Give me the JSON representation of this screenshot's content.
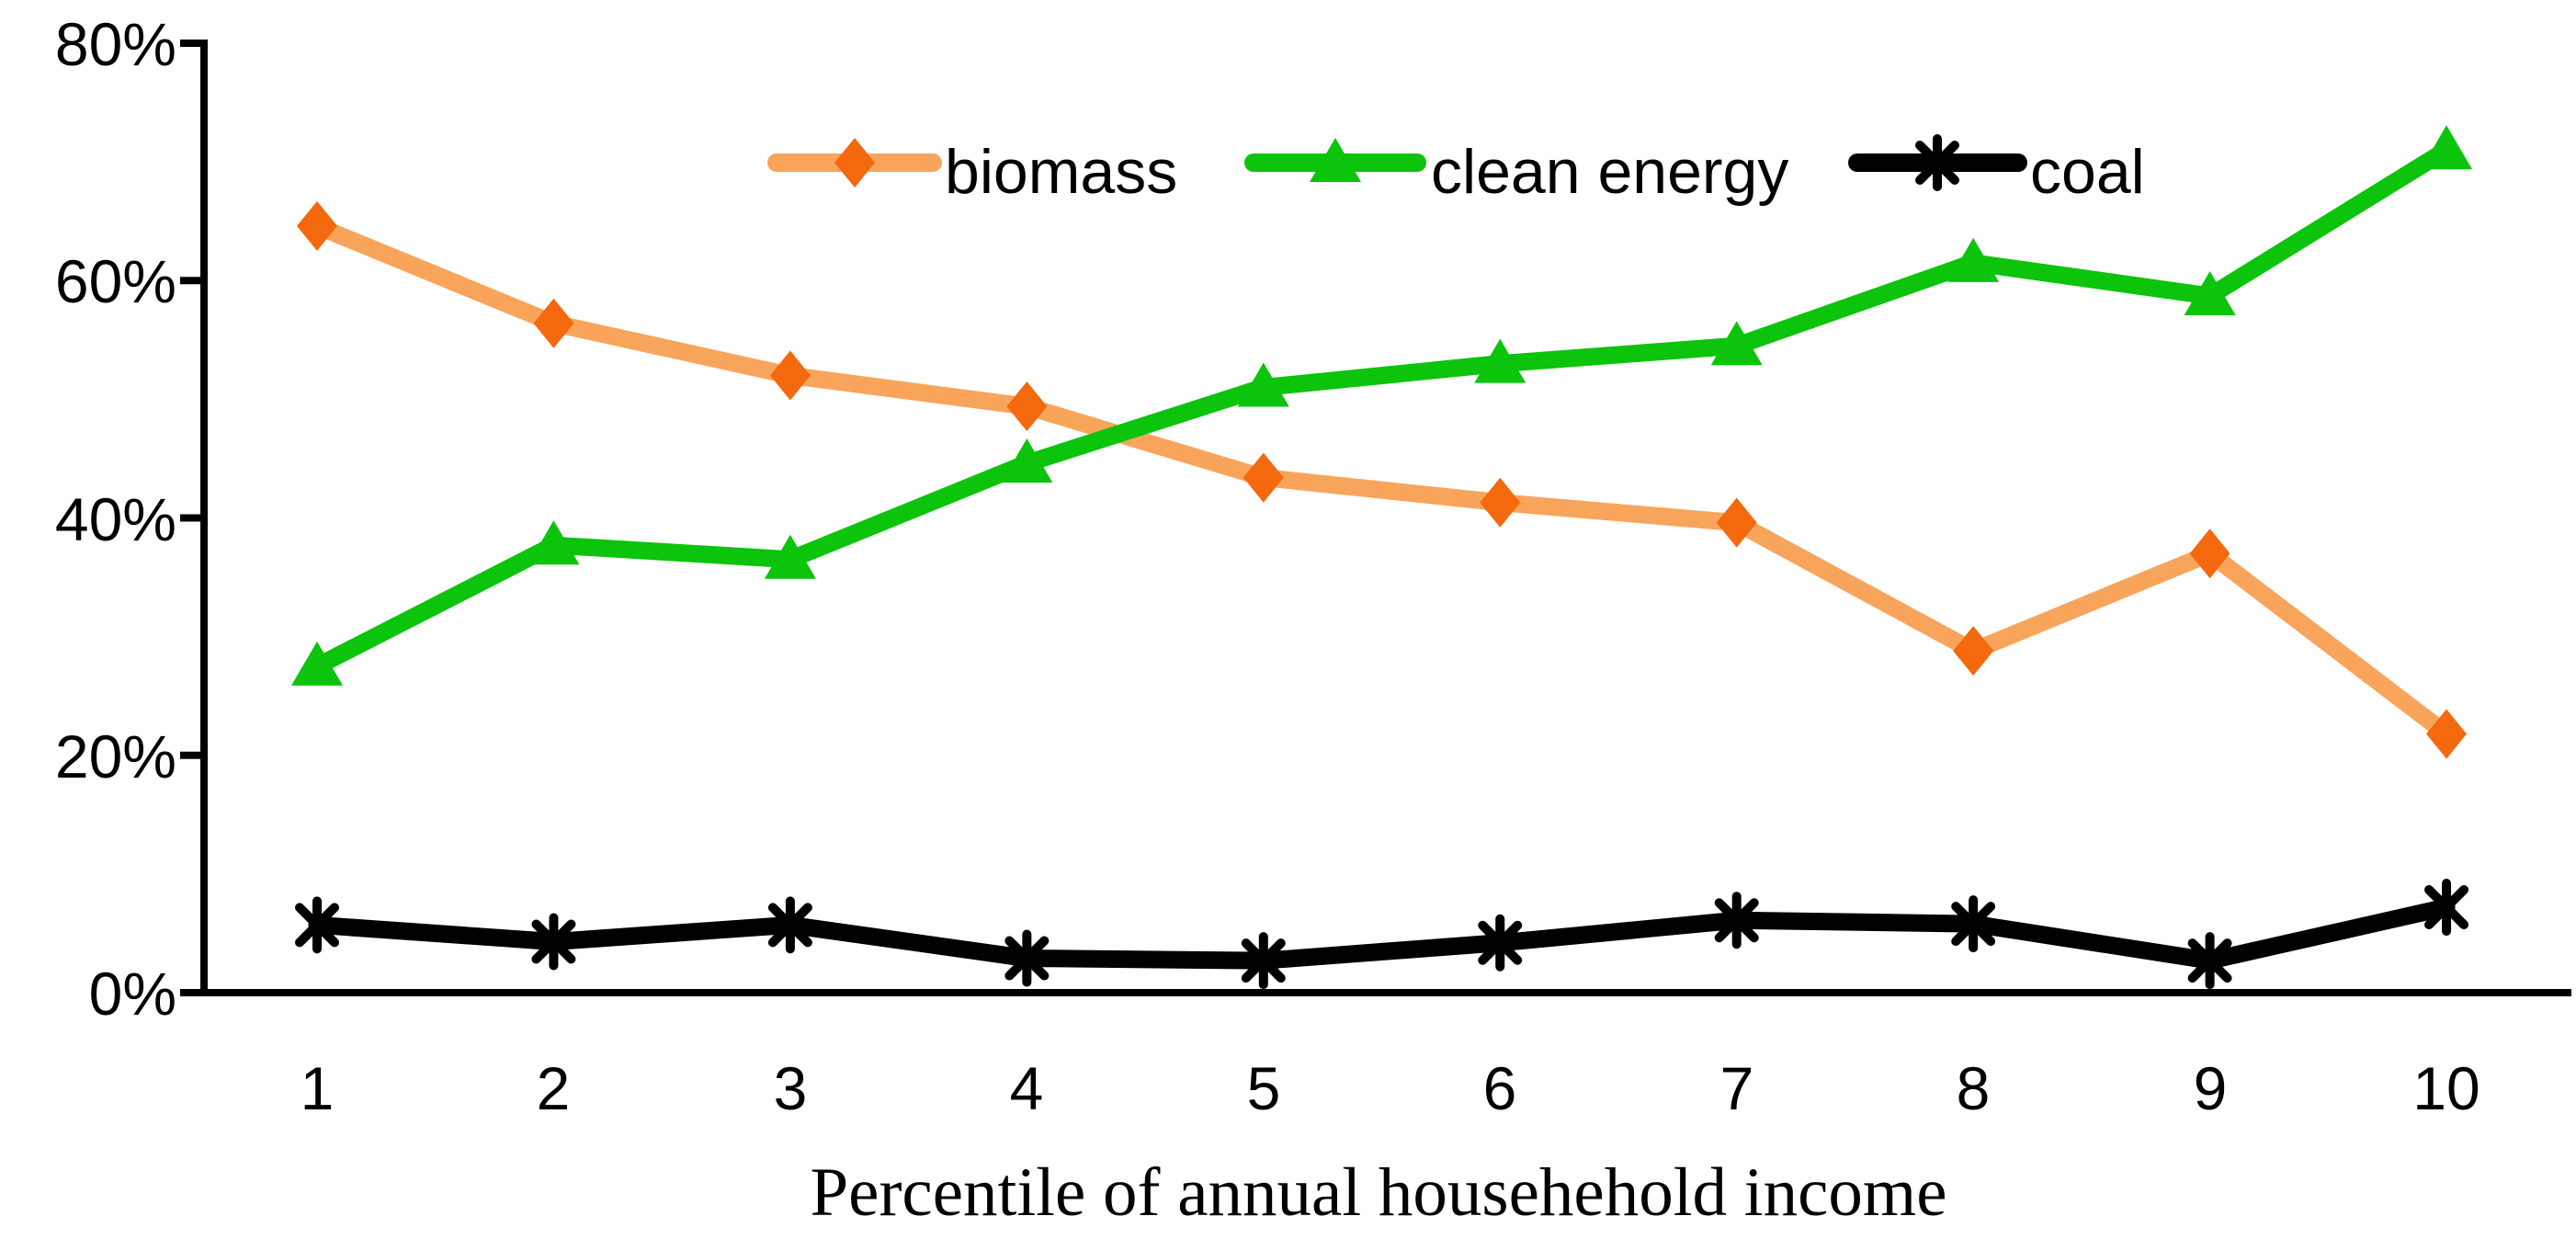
{
  "figure": {
    "background_color": "#ffffff",
    "axis_color": "#000000",
    "text_color": "#000000"
  },
  "chart_data": {
    "type": "line",
    "title": "",
    "xlabel": "Percentile of annual househehold income",
    "ylabel": "",
    "grid": false,
    "legend_position": "top-center",
    "ylim": [
      0,
      80
    ],
    "y_tick_values": [
      0,
      20,
      40,
      60,
      80
    ],
    "y_tick_labels": [
      "0%",
      "20%",
      "40%",
      "60%",
      "80%"
    ],
    "x": [
      1,
      2,
      3,
      4,
      5,
      6,
      7,
      8,
      9,
      10
    ],
    "x_tick_labels": [
      "1",
      "2",
      "3",
      "4",
      "5",
      "6",
      "7",
      "8",
      "9",
      "10"
    ],
    "series": [
      {
        "name": "biomass",
        "marker": "diamond",
        "line_color": "#F9A45B",
        "marker_color": "#F4690E",
        "values": [
          64.6,
          56.4,
          52.0,
          49.4,
          43.4,
          41.3,
          39.6,
          28.8,
          37.0,
          21.8
        ]
      },
      {
        "name": "clean energy",
        "marker": "triangle",
        "line_color": "#0BC40B",
        "marker_color": "#0BC40B",
        "values": [
          27.5,
          37.7,
          36.5,
          44.6,
          51.0,
          53.0,
          54.5,
          61.5,
          58.7,
          71.0
        ]
      },
      {
        "name": "coal",
        "marker": "asterisk",
        "line_color": "#000000",
        "marker_color": "#000000",
        "values": [
          5.7,
          4.3,
          5.7,
          2.9,
          2.7,
          4.2,
          6.1,
          5.8,
          2.7,
          7.2
        ]
      }
    ]
  }
}
